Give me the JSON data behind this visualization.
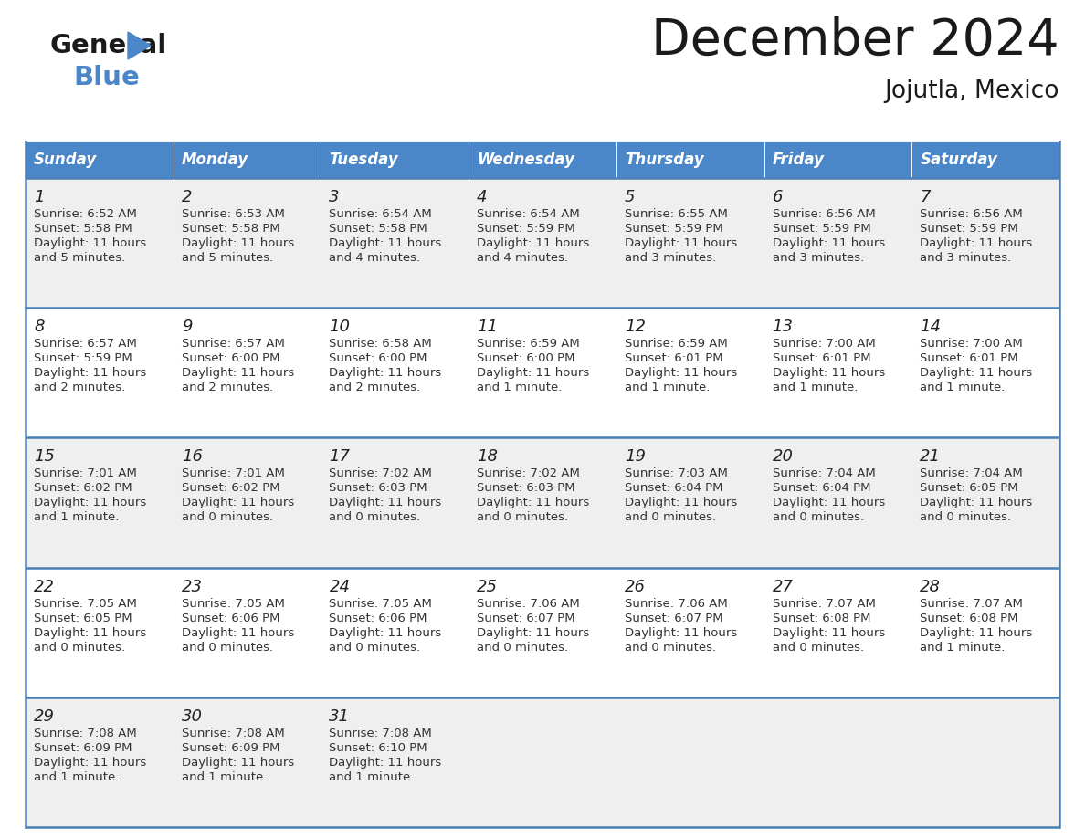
{
  "title": "December 2024",
  "subtitle": "Jojutla, Mexico",
  "header_bg_color": "#4a86c8",
  "header_text_color": "#ffffff",
  "row_bg_even": "#efefef",
  "row_bg_odd": "#ffffff",
  "border_color": "#4a7fb5",
  "text_color": "#333333",
  "days_of_week": [
    "Sunday",
    "Monday",
    "Tuesday",
    "Wednesday",
    "Thursday",
    "Friday",
    "Saturday"
  ],
  "calendar_data": [
    [
      {
        "day": "1",
        "sunrise": "6:52 AM",
        "sunset": "5:58 PM",
        "dl1": "Daylight: 11 hours",
        "dl2": "and 5 minutes."
      },
      {
        "day": "2",
        "sunrise": "6:53 AM",
        "sunset": "5:58 PM",
        "dl1": "Daylight: 11 hours",
        "dl2": "and 5 minutes."
      },
      {
        "day": "3",
        "sunrise": "6:54 AM",
        "sunset": "5:58 PM",
        "dl1": "Daylight: 11 hours",
        "dl2": "and 4 minutes."
      },
      {
        "day": "4",
        "sunrise": "6:54 AM",
        "sunset": "5:59 PM",
        "dl1": "Daylight: 11 hours",
        "dl2": "and 4 minutes."
      },
      {
        "day": "5",
        "sunrise": "6:55 AM",
        "sunset": "5:59 PM",
        "dl1": "Daylight: 11 hours",
        "dl2": "and 3 minutes."
      },
      {
        "day": "6",
        "sunrise": "6:56 AM",
        "sunset": "5:59 PM",
        "dl1": "Daylight: 11 hours",
        "dl2": "and 3 minutes."
      },
      {
        "day": "7",
        "sunrise": "6:56 AM",
        "sunset": "5:59 PM",
        "dl1": "Daylight: 11 hours",
        "dl2": "and 3 minutes."
      }
    ],
    [
      {
        "day": "8",
        "sunrise": "6:57 AM",
        "sunset": "5:59 PM",
        "dl1": "Daylight: 11 hours",
        "dl2": "and 2 minutes."
      },
      {
        "day": "9",
        "sunrise": "6:57 AM",
        "sunset": "6:00 PM",
        "dl1": "Daylight: 11 hours",
        "dl2": "and 2 minutes."
      },
      {
        "day": "10",
        "sunrise": "6:58 AM",
        "sunset": "6:00 PM",
        "dl1": "Daylight: 11 hours",
        "dl2": "and 2 minutes."
      },
      {
        "day": "11",
        "sunrise": "6:59 AM",
        "sunset": "6:00 PM",
        "dl1": "Daylight: 11 hours",
        "dl2": "and 1 minute."
      },
      {
        "day": "12",
        "sunrise": "6:59 AM",
        "sunset": "6:01 PM",
        "dl1": "Daylight: 11 hours",
        "dl2": "and 1 minute."
      },
      {
        "day": "13",
        "sunrise": "7:00 AM",
        "sunset": "6:01 PM",
        "dl1": "Daylight: 11 hours",
        "dl2": "and 1 minute."
      },
      {
        "day": "14",
        "sunrise": "7:00 AM",
        "sunset": "6:01 PM",
        "dl1": "Daylight: 11 hours",
        "dl2": "and 1 minute."
      }
    ],
    [
      {
        "day": "15",
        "sunrise": "7:01 AM",
        "sunset": "6:02 PM",
        "dl1": "Daylight: 11 hours",
        "dl2": "and 1 minute."
      },
      {
        "day": "16",
        "sunrise": "7:01 AM",
        "sunset": "6:02 PM",
        "dl1": "Daylight: 11 hours",
        "dl2": "and 0 minutes."
      },
      {
        "day": "17",
        "sunrise": "7:02 AM",
        "sunset": "6:03 PM",
        "dl1": "Daylight: 11 hours",
        "dl2": "and 0 minutes."
      },
      {
        "day": "18",
        "sunrise": "7:02 AM",
        "sunset": "6:03 PM",
        "dl1": "Daylight: 11 hours",
        "dl2": "and 0 minutes."
      },
      {
        "day": "19",
        "sunrise": "7:03 AM",
        "sunset": "6:04 PM",
        "dl1": "Daylight: 11 hours",
        "dl2": "and 0 minutes."
      },
      {
        "day": "20",
        "sunrise": "7:04 AM",
        "sunset": "6:04 PM",
        "dl1": "Daylight: 11 hours",
        "dl2": "and 0 minutes."
      },
      {
        "day": "21",
        "sunrise": "7:04 AM",
        "sunset": "6:05 PM",
        "dl1": "Daylight: 11 hours",
        "dl2": "and 0 minutes."
      }
    ],
    [
      {
        "day": "22",
        "sunrise": "7:05 AM",
        "sunset": "6:05 PM",
        "dl1": "Daylight: 11 hours",
        "dl2": "and 0 minutes."
      },
      {
        "day": "23",
        "sunrise": "7:05 AM",
        "sunset": "6:06 PM",
        "dl1": "Daylight: 11 hours",
        "dl2": "and 0 minutes."
      },
      {
        "day": "24",
        "sunrise": "7:05 AM",
        "sunset": "6:06 PM",
        "dl1": "Daylight: 11 hours",
        "dl2": "and 0 minutes."
      },
      {
        "day": "25",
        "sunrise": "7:06 AM",
        "sunset": "6:07 PM",
        "dl1": "Daylight: 11 hours",
        "dl2": "and 0 minutes."
      },
      {
        "day": "26",
        "sunrise": "7:06 AM",
        "sunset": "6:07 PM",
        "dl1": "Daylight: 11 hours",
        "dl2": "and 0 minutes."
      },
      {
        "day": "27",
        "sunrise": "7:07 AM",
        "sunset": "6:08 PM",
        "dl1": "Daylight: 11 hours",
        "dl2": "and 0 minutes."
      },
      {
        "day": "28",
        "sunrise": "7:07 AM",
        "sunset": "6:08 PM",
        "dl1": "Daylight: 11 hours",
        "dl2": "and 1 minute."
      }
    ],
    [
      {
        "day": "29",
        "sunrise": "7:08 AM",
        "sunset": "6:09 PM",
        "dl1": "Daylight: 11 hours",
        "dl2": "and 1 minute."
      },
      {
        "day": "30",
        "sunrise": "7:08 AM",
        "sunset": "6:09 PM",
        "dl1": "Daylight: 11 hours",
        "dl2": "and 1 minute."
      },
      {
        "day": "31",
        "sunrise": "7:08 AM",
        "sunset": "6:10 PM",
        "dl1": "Daylight: 11 hours",
        "dl2": "and 1 minute."
      },
      null,
      null,
      null,
      null
    ]
  ]
}
